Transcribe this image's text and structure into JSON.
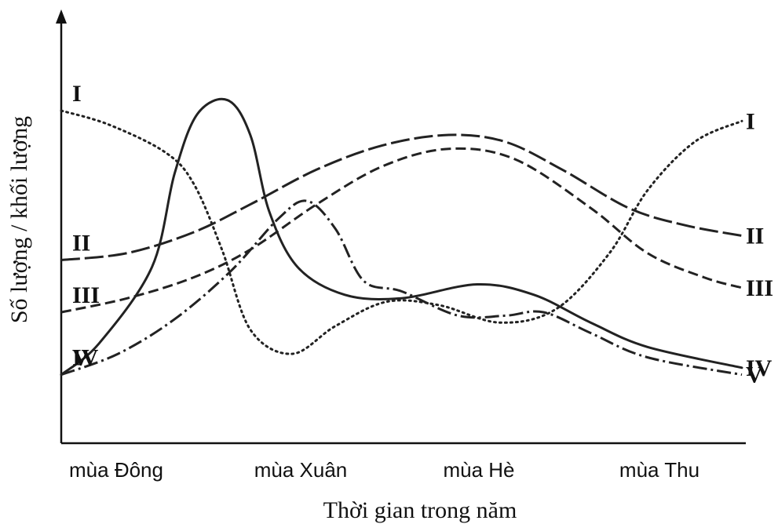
{
  "chart_data": {
    "type": "line",
    "title": "",
    "xlabel": "Thời gian trong năm",
    "ylabel": "Số lượng / khối lượng",
    "categories": [
      "mùa Đông",
      "mùa Xuân",
      "mùa Hè",
      "mùa Thu"
    ],
    "x_range": [
      0,
      3.6
    ],
    "y_range": [
      0,
      100
    ],
    "grid": false,
    "legend": "none",
    "series": [
      {
        "name": "I",
        "dash": "dotted",
        "points": [
          [
            0,
            93
          ],
          [
            0.25,
            89
          ],
          [
            0.55,
            81
          ],
          [
            0.7,
            72
          ],
          [
            0.85,
            53
          ],
          [
            1.0,
            30
          ],
          [
            1.22,
            23
          ],
          [
            1.45,
            31
          ],
          [
            1.72,
            38
          ],
          [
            2.0,
            37
          ],
          [
            2.32,
            32
          ],
          [
            2.62,
            36
          ],
          [
            2.9,
            52
          ],
          [
            3.1,
            70
          ],
          [
            3.35,
            84
          ],
          [
            3.6,
            90
          ]
        ]
      },
      {
        "name": "II",
        "dash": "long-dash",
        "points": [
          [
            0,
            50
          ],
          [
            0.35,
            52
          ],
          [
            0.7,
            58
          ],
          [
            1.0,
            66
          ],
          [
            1.35,
            76
          ],
          [
            1.7,
            83
          ],
          [
            2.05,
            86
          ],
          [
            2.35,
            84
          ],
          [
            2.65,
            76
          ],
          [
            3.0,
            65
          ],
          [
            3.3,
            60
          ],
          [
            3.6,
            57
          ]
        ]
      },
      {
        "name": "III",
        "dash": "dash",
        "points": [
          [
            0,
            35
          ],
          [
            0.35,
            39
          ],
          [
            0.7,
            45
          ],
          [
            1.0,
            53
          ],
          [
            1.35,
            66
          ],
          [
            1.7,
            77
          ],
          [
            2.05,
            82
          ],
          [
            2.4,
            79
          ],
          [
            2.8,
            65
          ],
          [
            3.1,
            52
          ],
          [
            3.4,
            45
          ],
          [
            3.6,
            42
          ]
        ]
      },
      {
        "name": "IV",
        "dash": "solid",
        "points": [
          [
            0,
            17
          ],
          [
            0.2,
            26
          ],
          [
            0.48,
            48
          ],
          [
            0.6,
            75
          ],
          [
            0.72,
            92
          ],
          [
            0.88,
            96
          ],
          [
            1.0,
            86
          ],
          [
            1.1,
            64
          ],
          [
            1.25,
            48
          ],
          [
            1.5,
            40
          ],
          [
            1.8,
            39
          ],
          [
            2.2,
            43
          ],
          [
            2.5,
            40
          ],
          [
            2.8,
            32
          ],
          [
            3.1,
            25
          ],
          [
            3.6,
            19
          ]
        ]
      },
      {
        "name": "V",
        "dash": "dash-dot",
        "points": [
          [
            0,
            17
          ],
          [
            0.3,
            23
          ],
          [
            0.6,
            33
          ],
          [
            0.9,
            47
          ],
          [
            1.15,
            62
          ],
          [
            1.3,
            67
          ],
          [
            1.45,
            59
          ],
          [
            1.6,
            44
          ],
          [
            1.8,
            41
          ],
          [
            2.1,
            34
          ],
          [
            2.35,
            34
          ],
          [
            2.55,
            35
          ],
          [
            2.8,
            29
          ],
          [
            3.1,
            22
          ],
          [
            3.6,
            17
          ]
        ]
      }
    ]
  }
}
